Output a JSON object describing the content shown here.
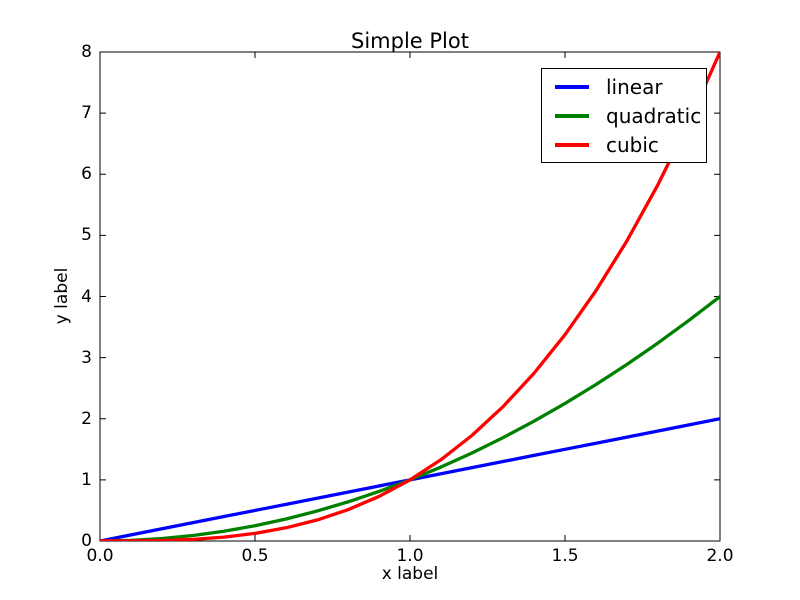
{
  "figure": {
    "background": "#ffffff"
  },
  "chart_data": {
    "type": "line",
    "title": "Simple Plot",
    "xlabel": "x label",
    "ylabel": "y label",
    "xlim": [
      0.0,
      2.0
    ],
    "ylim": [
      0.0,
      8.0
    ],
    "grid": false,
    "axis_color": "#000000",
    "text_color": "#000000",
    "legend": {
      "position": "upper right",
      "entries": [
        "linear",
        "quadratic",
        "cubic"
      ]
    },
    "xticks": {
      "values": [
        0.0,
        0.5,
        1.0,
        1.5,
        2.0
      ],
      "labels": [
        "0.0",
        "0.5",
        "1.0",
        "1.5",
        "2.0"
      ]
    },
    "yticks": {
      "values": [
        0,
        1,
        2,
        3,
        4,
        5,
        6,
        7,
        8
      ],
      "labels": [
        "0",
        "1",
        "2",
        "3",
        "4",
        "5",
        "6",
        "7",
        "8"
      ]
    },
    "x": [
      0.0,
      0.1,
      0.2,
      0.3,
      0.4,
      0.5,
      0.6,
      0.7,
      0.8,
      0.9,
      1.0,
      1.1,
      1.2,
      1.3,
      1.4,
      1.5,
      1.6,
      1.7,
      1.8,
      1.9,
      2.0
    ],
    "series": [
      {
        "name": "linear",
        "color": "#0000ff",
        "values": [
          0.0,
          0.1,
          0.2,
          0.3,
          0.4,
          0.5,
          0.6,
          0.7,
          0.8,
          0.9,
          1.0,
          1.1,
          1.2,
          1.3,
          1.4,
          1.5,
          1.6,
          1.7,
          1.8,
          1.9,
          2.0
        ]
      },
      {
        "name": "quadratic",
        "color": "#008000",
        "values": [
          0.0,
          0.01,
          0.04,
          0.09,
          0.16,
          0.25,
          0.36,
          0.49,
          0.64,
          0.81,
          1.0,
          1.21,
          1.44,
          1.69,
          1.96,
          2.25,
          2.56,
          2.89,
          3.24,
          3.61,
          4.0
        ]
      },
      {
        "name": "cubic",
        "color": "#ff0000",
        "values": [
          0.0,
          0.001,
          0.008,
          0.027,
          0.064,
          0.125,
          0.216,
          0.343,
          0.512,
          0.729,
          1.0,
          1.331,
          1.728,
          2.197,
          2.744,
          3.375,
          4.096,
          4.913,
          5.832,
          6.859,
          8.0
        ]
      }
    ]
  }
}
